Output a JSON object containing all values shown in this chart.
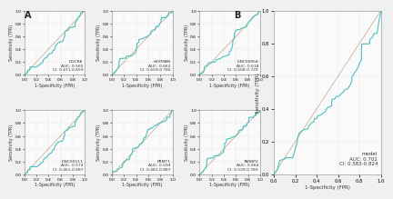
{
  "panel_A_plots": [
    {
      "name": "DGCR8",
      "AUC": 0.565,
      "CI": "0.471-0.659"
    },
    {
      "name": "HGTMAN",
      "AUC": 0.662,
      "CI": "0.559-0.766"
    },
    {
      "name": "LINC00958",
      "AUC": 0.618,
      "CI": "0.508-0.729"
    },
    {
      "name": "LINC00511",
      "AUC": 0.574,
      "CI": "0.461-0.687"
    },
    {
      "name": "PRMT1",
      "AUC": 0.594,
      "CI": "0.481-0.887"
    },
    {
      "name": "TARBP2",
      "AUC": 0.664,
      "CI": "0.529-0.783"
    }
  ],
  "panel_B": {
    "name": "model",
    "AUC": 0.702,
    "CI": "0.583-0.824"
  },
  "curve_color": "#4DBFBF",
  "diag_color": "#C0A080",
  "bg_color": "#F5F5F5",
  "axes_bg": "#FFFFFF",
  "tick_color": "#555555",
  "label_color": "#333333",
  "grid_color": "#DDDDDD",
  "font_size_small": 4.5,
  "font_size_annot": 3.8,
  "lw_curve": 0.8,
  "lw_diag": 0.6
}
